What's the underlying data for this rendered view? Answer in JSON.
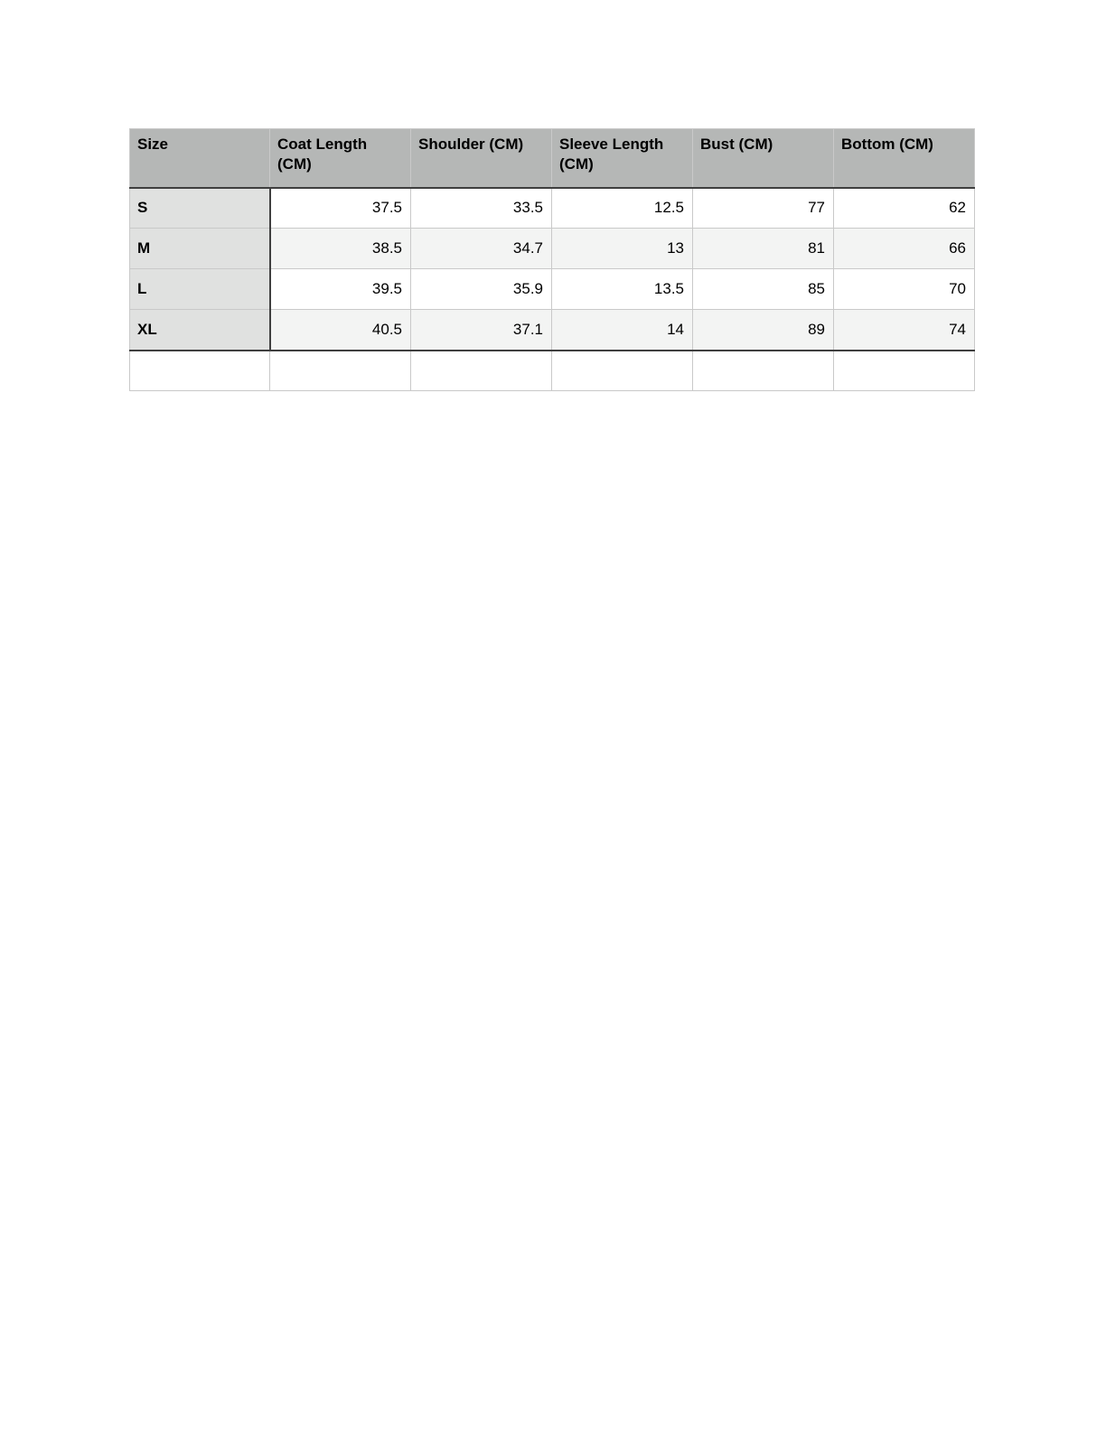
{
  "page": {
    "background": "#ffffff"
  },
  "table": {
    "headers": [
      "Size",
      "Coat Length (CM)",
      "Shoulder (CM)",
      "Sleeve Length (CM)",
      "Bust (CM)",
      "Bottom (CM)"
    ],
    "rows": [
      [
        "S",
        "37.5",
        "33.5",
        "12.5",
        "77",
        "62"
      ],
      [
        "M",
        "38.5",
        "34.7",
        "13",
        "81",
        "66"
      ],
      [
        "L",
        "39.5",
        "35.9",
        "13.5",
        "85",
        "70"
      ],
      [
        "XL",
        "40.5",
        "37.1",
        "14",
        "89",
        "74"
      ],
      [
        "",
        "",
        "",
        "",
        "",
        ""
      ]
    ],
    "colors": {
      "header_bg": "#b5b7b6",
      "size_column_bg": "#e0e1e0",
      "row_alt_bg": "#f3f4f3",
      "border_light": "#c9c9c9",
      "border_dark": "#3f3f3f",
      "text": "#000000"
    }
  }
}
